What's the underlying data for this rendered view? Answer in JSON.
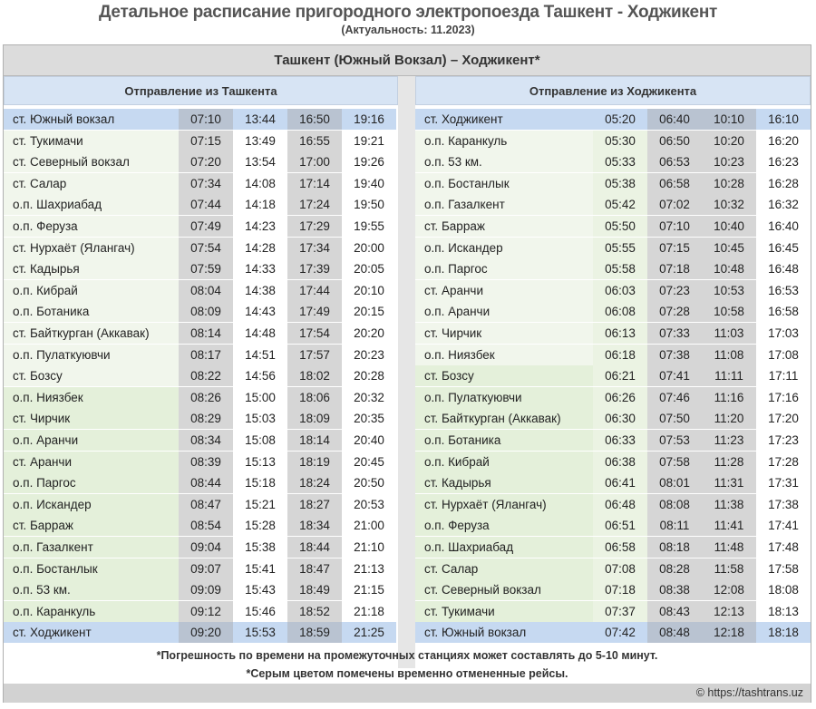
{
  "header": {
    "title": "Детальное расписание пригородного электропоезда Ташкент - Ходжикент",
    "subtitle": "(Актуальность: 11.2023)"
  },
  "route_title": "Ташкент (Южный Вокзал) – Ходжикент*",
  "directions": {
    "from_tashkent": "Отправление из Ташкента",
    "from_khojikent": "Отправление из Ходжикента"
  },
  "left_rows": [
    {
      "station": "ст. Южный вокзал",
      "times": [
        "07:10",
        "13:44",
        "16:50",
        "19:16"
      ]
    },
    {
      "station": "ст. Тукимачи",
      "times": [
        "07:15",
        "13:49",
        "16:55",
        "19:21"
      ]
    },
    {
      "station": "ст. Северный вокзал",
      "times": [
        "07:20",
        "13:54",
        "17:00",
        "19:26"
      ]
    },
    {
      "station": "ст. Салар",
      "times": [
        "07:34",
        "14:08",
        "17:14",
        "19:40"
      ]
    },
    {
      "station": "о.п. Шахриабад",
      "times": [
        "07:44",
        "14:18",
        "17:24",
        "19:50"
      ]
    },
    {
      "station": "о.п. Феруза",
      "times": [
        "07:49",
        "14:23",
        "17:29",
        "19:55"
      ]
    },
    {
      "station": "ст. Нурхаёт (Ялангач)",
      "times": [
        "07:54",
        "14:28",
        "17:34",
        "20:00"
      ]
    },
    {
      "station": "ст. Кадырья",
      "times": [
        "07:59",
        "14:33",
        "17:39",
        "20:05"
      ]
    },
    {
      "station": "о.п. Кибрай",
      "times": [
        "08:04",
        "14:38",
        "17:44",
        "20:10"
      ]
    },
    {
      "station": "о.п. Ботаника",
      "times": [
        "08:09",
        "14:43",
        "17:49",
        "20:15"
      ]
    },
    {
      "station": "ст. Байткурган (Аккавак)",
      "times": [
        "08:14",
        "14:48",
        "17:54",
        "20:20"
      ]
    },
    {
      "station": "о.п.  Пулаткуювчи",
      "times": [
        "08:17",
        "14:51",
        "17:57",
        "20:23"
      ]
    },
    {
      "station": "ст.  Бозсу",
      "times": [
        "08:22",
        "14:56",
        "18:02",
        "20:28"
      ]
    },
    {
      "station": "о.п. Ниязбек",
      "times": [
        "08:26",
        "15:00",
        "18:06",
        "20:32"
      ]
    },
    {
      "station": "ст. Чирчик",
      "times": [
        "08:29",
        "15:03",
        "18:09",
        "20:35"
      ]
    },
    {
      "station": "о.п. Аранчи",
      "times": [
        "08:34",
        "15:08",
        "18:14",
        "20:40"
      ]
    },
    {
      "station": "ст. Аранчи",
      "times": [
        "08:39",
        "15:13",
        "18:19",
        "20:45"
      ]
    },
    {
      "station": "о.п. Паргос",
      "times": [
        "08:44",
        "15:18",
        "18:24",
        "20:50"
      ]
    },
    {
      "station": "о.п. Искандер",
      "times": [
        "08:47",
        "15:21",
        "18:27",
        "20:53"
      ]
    },
    {
      "station": "ст. Барраж",
      "times": [
        "08:54",
        "15:28",
        "18:34",
        "21:00"
      ]
    },
    {
      "station": "о.п. Газалкент",
      "times": [
        "09:04",
        "15:38",
        "18:44",
        "21:10"
      ]
    },
    {
      "station": "о.п. Бостанлык",
      "times": [
        "09:07",
        "15:41",
        "18:47",
        "21:13"
      ]
    },
    {
      "station": "о.п. 53 км.",
      "times": [
        "09:09",
        "15:43",
        "18:49",
        "21:15"
      ]
    },
    {
      "station": "о.п. Каранкуль",
      "times": [
        "09:12",
        "15:46",
        "18:52",
        "21:18"
      ]
    },
    {
      "station": "ст. Ходжикент",
      "times": [
        "09:20",
        "15:53",
        "18:59",
        "21:25"
      ]
    }
  ],
  "right_rows": [
    {
      "station": "ст. Ходжикент",
      "times": [
        "05:20",
        "06:40",
        "10:10",
        "16:10"
      ]
    },
    {
      "station": "о.п. Каранкуль",
      "times": [
        "05:30",
        "06:50",
        "10:20",
        "16:20"
      ]
    },
    {
      "station": "о.п. 53 км.",
      "times": [
        "05:33",
        "06:53",
        "10:23",
        "16:23"
      ]
    },
    {
      "station": "о.п. Бостанлык",
      "times": [
        "05:38",
        "06:58",
        "10:28",
        "16:28"
      ]
    },
    {
      "station": "о.п. Газалкент",
      "times": [
        "05:42",
        "07:02",
        "10:32",
        "16:32"
      ]
    },
    {
      "station": "ст. Барраж",
      "times": [
        "05:50",
        "07:10",
        "10:40",
        "16:40"
      ]
    },
    {
      "station": "о.п. Искандер",
      "times": [
        "05:55",
        "07:15",
        "10:45",
        "16:45"
      ]
    },
    {
      "station": "о.п. Паргос",
      "times": [
        "05:58",
        "07:18",
        "10:48",
        "16:48"
      ]
    },
    {
      "station": "ст. Аранчи",
      "times": [
        "06:03",
        "07:23",
        "10:53",
        "16:53"
      ]
    },
    {
      "station": "о.п. Аранчи",
      "times": [
        "06:08",
        "07:28",
        "10:58",
        "16:58"
      ]
    },
    {
      "station": "ст. Чирчик",
      "times": [
        "06:13",
        "07:33",
        "11:03",
        "17:03"
      ]
    },
    {
      "station": "о.п. Ниязбек",
      "times": [
        "06:18",
        "07:38",
        "11:08",
        "17:08"
      ]
    },
    {
      "station": "ст.  Бозсу",
      "times": [
        "06:21",
        "07:41",
        "11:11",
        "17:11"
      ]
    },
    {
      "station": "о.п. Пулаткуювчи",
      "times": [
        "06:26",
        "07:46",
        "11:16",
        "17:16"
      ]
    },
    {
      "station": "ст. Байткурган (Аккавак)",
      "times": [
        "06:30",
        "07:50",
        "11:20",
        "17:20"
      ]
    },
    {
      "station": "о.п. Ботаника",
      "times": [
        "06:33",
        "07:53",
        "11:23",
        "17:23"
      ]
    },
    {
      "station": "о.п. Кибрай",
      "times": [
        "06:38",
        "07:58",
        "11:28",
        "17:28"
      ]
    },
    {
      "station": "ст. Кадырья",
      "times": [
        "06:41",
        "08:01",
        "11:31",
        "17:31"
      ]
    },
    {
      "station": "ст. Нурхаёт (Ялангач)",
      "times": [
        "06:48",
        "08:08",
        "11:38",
        "17:38"
      ]
    },
    {
      "station": "о.п. Феруза",
      "times": [
        "06:51",
        "08:11",
        "11:41",
        "17:41"
      ]
    },
    {
      "station": "о.п. Шахриабад",
      "times": [
        "06:58",
        "08:18",
        "11:48",
        "17:48"
      ]
    },
    {
      "station": "ст. Салар",
      "times": [
        "07:08",
        "08:28",
        "11:58",
        "17:58"
      ]
    },
    {
      "station": "ст. Северный вокзал",
      "times": [
        "07:18",
        "08:38",
        "12:08",
        "18:08"
      ]
    },
    {
      "station": "ст. Тукимачи",
      "times": [
        "07:37",
        "08:43",
        "12:13",
        "18:13"
      ]
    },
    {
      "station": "ст. Южный вокзал",
      "times": [
        "07:42",
        "08:48",
        "12:18",
        "18:18"
      ]
    }
  ],
  "left_cancelled": [
    true,
    false,
    true,
    false
  ],
  "right_cancelled": [
    false,
    true,
    true,
    false
  ],
  "colors": {
    "terminal_row": "#c6d9f1",
    "terminal_row_grey": "#b9c3d1",
    "station_green": "#e4f0da",
    "station_light": "#f1f6ec",
    "cancelled_grey": "#d6d6d6",
    "time_white": "#ffffff",
    "time_green": "#ebf3e3",
    "header_blue": "#d7e4f4"
  },
  "footnotes": {
    "accuracy": "*Погрешность по времени на промежуточных станциях может составлять до 5-10 минут.",
    "cancelled": "*Серым цветом помечены временно отмененные рейсы."
  },
  "copyright": "© https://tashtrans.uz"
}
